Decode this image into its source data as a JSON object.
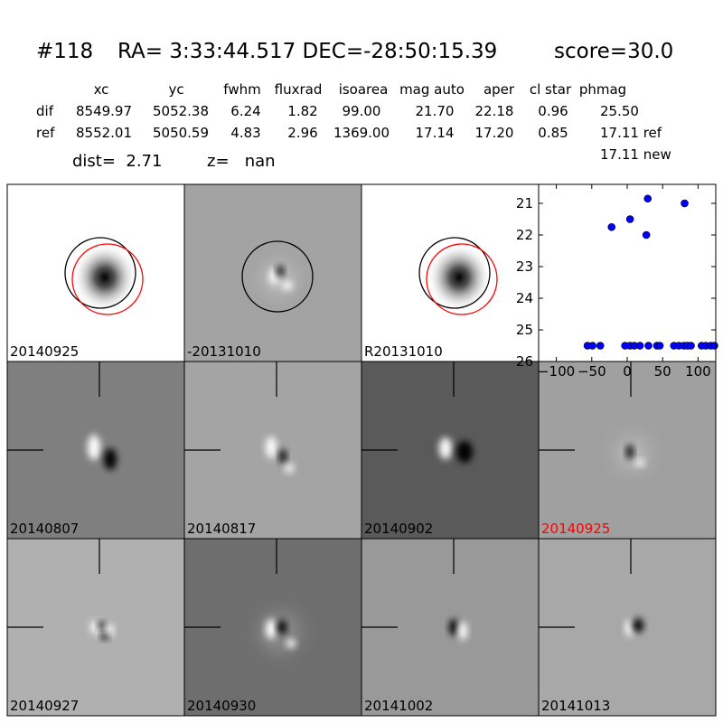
{
  "header": {
    "id": "#118",
    "coords": "RA= 3:33:44.517 DEC=-28:50:15.39",
    "score": "score=30.0"
  },
  "table": {
    "columns": [
      "xc",
      "yc",
      "fwhm",
      "fluxrad",
      "isoarea",
      "mag auto",
      "aper",
      "cl star",
      "phmag"
    ],
    "rows": [
      {
        "name": "dif",
        "values": [
          "8549.97",
          "5052.38",
          "6.24",
          "1.82",
          "99.00",
          "21.70",
          "22.18",
          "0.96",
          "25.50"
        ]
      },
      {
        "name": "ref",
        "values": [
          "8552.01",
          "5050.59",
          "4.83",
          "2.96",
          "1369.00",
          "17.14",
          "17.20",
          "0.85",
          "17.11 ref"
        ]
      }
    ],
    "extra": "17.11 new"
  },
  "dist": "dist=  2.71",
  "z": "z=   nan",
  "panels": [
    {
      "label": "20140925"
    },
    {
      "label": "-20131010"
    },
    {
      "label": "R20131010"
    },
    {
      "label": "20140807"
    },
    {
      "label": "20140817"
    },
    {
      "label": "20140902"
    },
    {
      "label": "20140925",
      "color": "#ff0000"
    },
    {
      "label": "20140927"
    },
    {
      "label": "20140930"
    },
    {
      "label": "20141002"
    },
    {
      "label": "20141013"
    }
  ],
  "chart_data": {
    "type": "scatter",
    "color": "#0000ff",
    "x": [
      -56,
      -49,
      -38,
      -22,
      -3,
      4,
      4,
      10,
      18,
      27,
      29,
      30,
      42,
      46,
      66,
      73,
      80,
      81,
      85,
      90,
      105,
      111,
      118,
      123
    ],
    "y": [
      25.5,
      25.5,
      25.5,
      21.75,
      25.5,
      21.5,
      25.5,
      25.5,
      25.5,
      22.0,
      20.85,
      25.5,
      25.5,
      25.5,
      25.5,
      25.5,
      25.5,
      21.0,
      25.5,
      25.5,
      25.5,
      25.5,
      25.5,
      25.5
    ],
    "xlim": [
      -125,
      125
    ],
    "ylim": [
      26,
      20.4
    ],
    "xticks": [
      {
        "value": -100,
        "label": "−100"
      },
      {
        "value": -50,
        "label": "−50"
      },
      0,
      50,
      100
    ],
    "yticks": [
      21,
      22,
      23,
      24,
      25,
      26
    ]
  }
}
